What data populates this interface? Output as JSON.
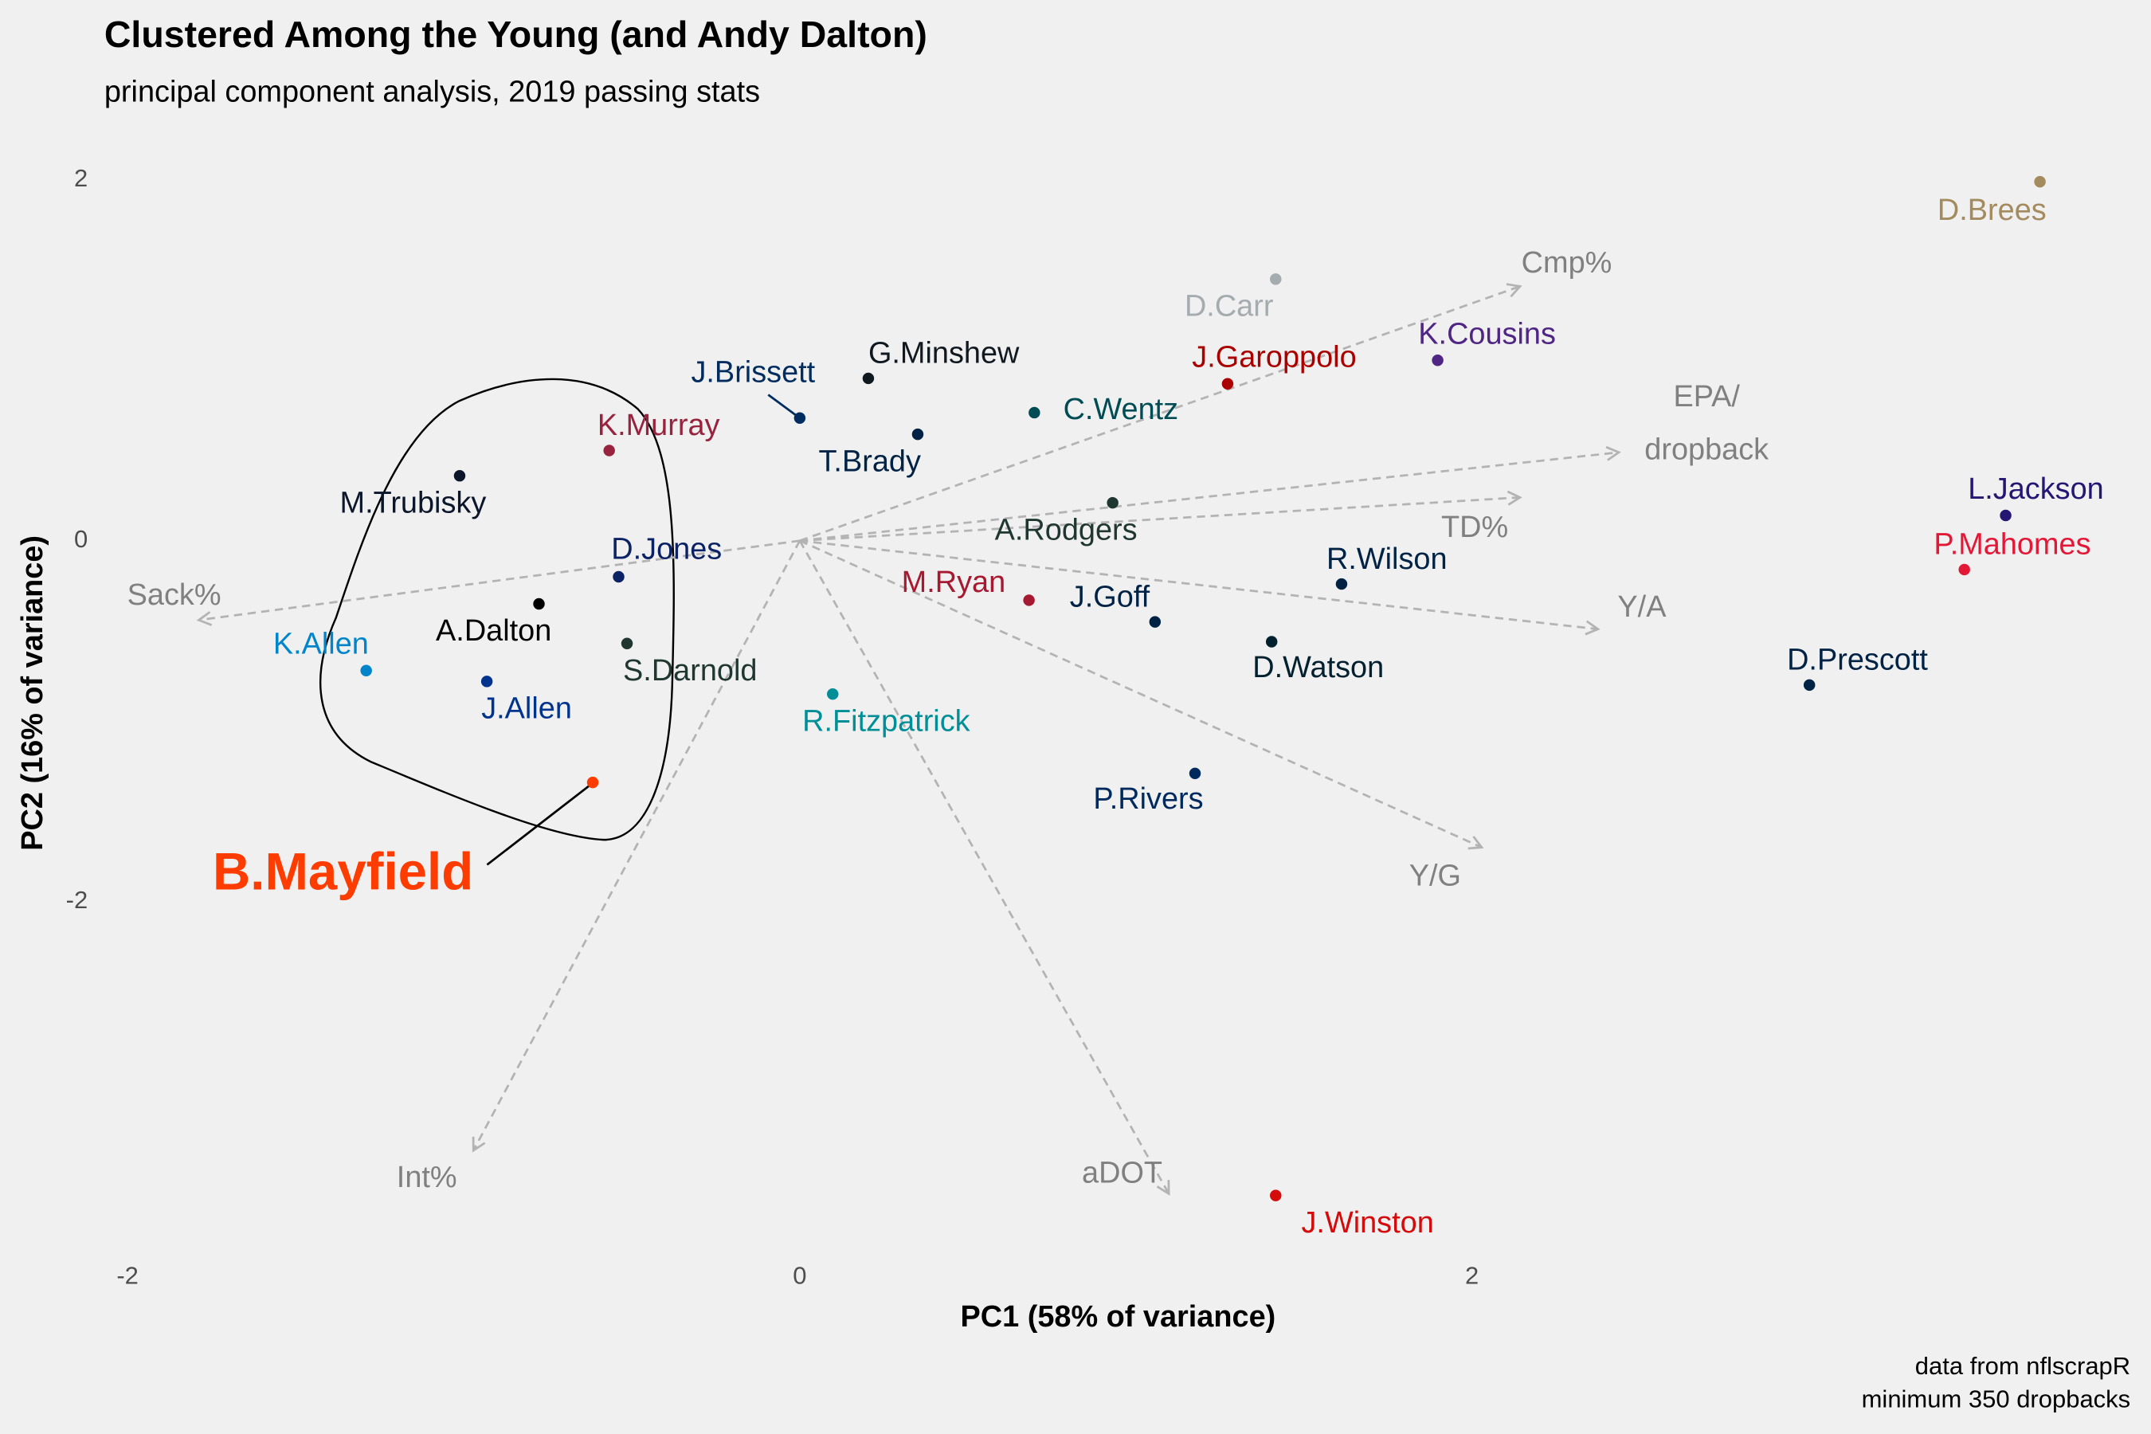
{
  "chart_data": {
    "type": "scatter",
    "title": "Clustered Among the Young (and Andy Dalton)",
    "subtitle": "principal component analysis, 2019 passing stats",
    "x_label": "PC1 (58% of variance)",
    "y_label": "PC2 (16% of variance)",
    "caption": [
      "data from nflscrapR",
      "minimum 350 dropbacks"
    ],
    "xlim": [
      -2.05,
      3.9
    ],
    "ylim": [
      -3.95,
      2.1
    ],
    "xticks": [
      -2,
      0,
      2
    ],
    "yticks": [
      -2,
      0,
      2
    ],
    "grid": false,
    "points": [
      {
        "label": "D.Brees",
        "color": "#a38b5f",
        "x": 3.69,
        "y": 1.99
      },
      {
        "label": "D.Carr",
        "color": "#a5acaf",
        "x": 1.416,
        "y": 1.45
      },
      {
        "label": "K.Cousins",
        "color": "#4f2683",
        "x": 1.898,
        "y": 1.0
      },
      {
        "label": "J.Garoppolo",
        "color": "#aa0000",
        "x": 1.273,
        "y": 0.87
      },
      {
        "label": "G.Minshew",
        "color": "#101820",
        "x": 0.204,
        "y": 0.9
      },
      {
        "label": "J.Brissett",
        "color": "#002c5f",
        "x": 0.0,
        "y": 0.68
      },
      {
        "label": "T.Brady",
        "color": "#002244",
        "x": 0.351,
        "y": 0.59
      },
      {
        "label": "C.Wentz",
        "color": "#004c54",
        "x": 0.698,
        "y": 0.71
      },
      {
        "label": "K.Murray",
        "color": "#97233f",
        "x": -0.567,
        "y": 0.5
      },
      {
        "label": "M.Trubisky",
        "color": "#0b162a",
        "x": -1.012,
        "y": 0.36
      },
      {
        "label": "A.Rodgers",
        "color": "#203731",
        "x": 0.931,
        "y": 0.21
      },
      {
        "label": "L.Jackson",
        "color": "#241773",
        "x": 3.588,
        "y": 0.14
      },
      {
        "label": "P.Mahomes",
        "color": "#e31837",
        "x": 3.465,
        "y": -0.16
      },
      {
        "label": "D.Jones",
        "color": "#0b2265",
        "x": -0.539,
        "y": -0.2
      },
      {
        "label": "R.Wilson",
        "color": "#002244",
        "x": 1.612,
        "y": -0.24
      },
      {
        "label": "M.Ryan",
        "color": "#a71930",
        "x": 0.682,
        "y": -0.33
      },
      {
        "label": "A.Dalton",
        "color": "#000000",
        "x": -0.776,
        "y": -0.35
      },
      {
        "label": "J.Goff",
        "color": "#002244",
        "x": 1.057,
        "y": -0.45
      },
      {
        "label": "D.Watson",
        "color": "#03202f",
        "x": 1.404,
        "y": -0.56
      },
      {
        "label": "S.Darnold",
        "color": "#203731",
        "x": -0.514,
        "y": -0.57
      },
      {
        "label": "K.Allen",
        "color": "#0085ca",
        "x": -1.29,
        "y": -0.72
      },
      {
        "label": "J.Allen",
        "color": "#00338d",
        "x": -0.931,
        "y": -0.78
      },
      {
        "label": "D.Prescott",
        "color": "#002244",
        "x": 3.004,
        "y": -0.8
      },
      {
        "label": "R.Fitzpatrick",
        "color": "#008e97",
        "x": 0.098,
        "y": -0.85
      },
      {
        "label": "P.Rivers",
        "color": "#002a5e",
        "x": 1.176,
        "y": -1.29
      },
      {
        "label": "B.Mayfield",
        "color": "#ff3c00",
        "x": -0.616,
        "y": -1.34,
        "emphasis": true
      },
      {
        "label": "J.Winston",
        "color": "#d50a0a",
        "x": 1.416,
        "y": -3.63
      }
    ],
    "loadings_color": "#b3b3b3",
    "loadings_label_color": "#808080",
    "loadings": [
      {
        "label": "Cmp%",
        "x": 2.143,
        "y": 1.41
      },
      {
        "label": "EPA/\ndropback",
        "x": 2.437,
        "y": 0.49
      },
      {
        "label": "TD%",
        "x": 2.143,
        "y": 0.24
      },
      {
        "label": "Y/A",
        "x": 2.375,
        "y": -0.49
      },
      {
        "label": "Y/G",
        "x": 2.029,
        "y": -1.7
      },
      {
        "label": "aDOT",
        "x": 1.098,
        "y": -3.62
      },
      {
        "label": "Int%",
        "x": -0.971,
        "y": -3.38
      },
      {
        "label": "Sack%",
        "x": -1.788,
        "y": -0.44
      }
    ]
  }
}
